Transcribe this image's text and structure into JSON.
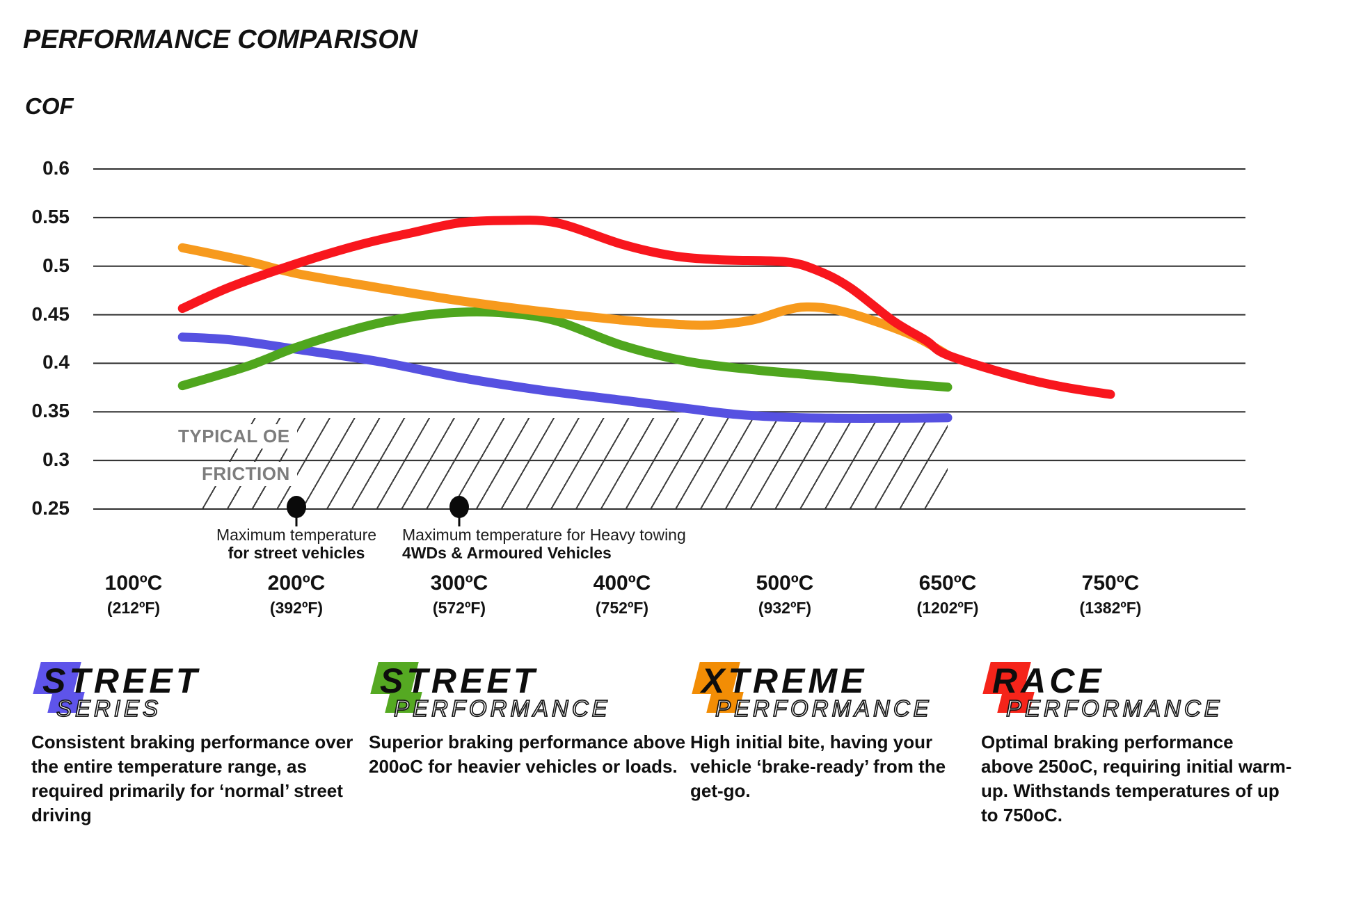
{
  "title": "PERFORMANCE COMPARISON",
  "y_axis_label": "COF",
  "y_ticks": [
    "0.6",
    "0.55",
    "0.5",
    "0.45",
    "0.4",
    "0.35",
    "0.3",
    "0.25"
  ],
  "x_ticks": [
    {
      "c": "100ºC",
      "f": "(212ºF)"
    },
    {
      "c": "200ºC",
      "f": "(392ºF)"
    },
    {
      "c": "300ºC",
      "f": "(572ºF)"
    },
    {
      "c": "400ºC",
      "f": "(752ºF)"
    },
    {
      "c": "500ºC",
      "f": "(932ºF)"
    },
    {
      "c": "650ºC",
      "f": "(1202ºF)"
    },
    {
      "c": "750ºC",
      "f": "(1382ºF)"
    }
  ],
  "oe_region": {
    "label_line1": "TYPICAL OE",
    "label_line2": "FRICTION"
  },
  "annotations": [
    {
      "temp": 200,
      "line1": "Maximum temperature",
      "line2": "for street vehicles"
    },
    {
      "temp": 300,
      "line1": "Maximum temperature for Heavy towing",
      "line2": "4WDs & Armoured Vehicles"
    }
  ],
  "legends": [
    {
      "word1": "STREET",
      "word2": "SERIES",
      "color": "#5e54ea",
      "description_lines": [
        "Consistent braking performance over",
        "the entire temperature range, as",
        "required primarily for ‘normal’ street",
        "driving"
      ]
    },
    {
      "word1": "STREET",
      "word2": "PERFORMANCE",
      "color": "#55a922",
      "description_lines": [
        "Superior braking performance above",
        "200oC for heavier vehicles or loads."
      ]
    },
    {
      "word1": "XTREME",
      "word2": "PERFORMANCE",
      "color": "#f28d05",
      "description_lines": [
        "High initial bite, having your",
        "vehicle ‘brake-ready’ from the",
        "get-go."
      ]
    },
    {
      "word1": "RACE",
      "word2": "PERFORMANCE",
      "color": "#f5241a",
      "description_lines": [
        "Optimal braking performance",
        "above 250oC, requiring initial warm-",
        "up. Withstands temperatures of up",
        "to 750oC."
      ]
    }
  ],
  "chart_data": {
    "type": "line",
    "title": "PERFORMANCE COMPARISON",
    "ylabel": "COF",
    "ylim": [
      0.25,
      0.6
    ],
    "grid": "horizontal",
    "x_scale": "uniform-tick-spacing",
    "x_tick_temps_c": [
      100,
      200,
      300,
      400,
      500,
      650,
      750
    ],
    "x_tick_temps_f": [
      212,
      392,
      572,
      752,
      932,
      1202,
      1382
    ],
    "oe_friction_band": {
      "label": "TYPICAL OE FRICTION",
      "cof_top": 0.345,
      "cof_bottom": 0.25,
      "temp_start": 130,
      "temp_end": 650
    },
    "markers": [
      {
        "temp": 200,
        "cof": 0.25,
        "label": "Maximum temperature for street vehicles"
      },
      {
        "temp": 300,
        "cof": 0.25,
        "label": "Maximum temperature for Heavy towing 4WDs & Armoured Vehicles"
      }
    ],
    "series": [
      {
        "name": "Street Series",
        "color": "#5651e1",
        "points": [
          [
            130,
            0.427
          ],
          [
            160,
            0.424
          ],
          [
            200,
            0.4145
          ],
          [
            250,
            0.402
          ],
          [
            300,
            0.3855
          ],
          [
            350,
            0.3725
          ],
          [
            400,
            0.362
          ],
          [
            440,
            0.3535
          ],
          [
            470,
            0.3475
          ],
          [
            500,
            0.3445
          ],
          [
            550,
            0.3435
          ],
          [
            600,
            0.3435
          ],
          [
            650,
            0.344
          ]
        ]
      },
      {
        "name": "Street Performance",
        "color": "#4fa61e",
        "points": [
          [
            130,
            0.377
          ],
          [
            170,
            0.397
          ],
          [
            200,
            0.4165
          ],
          [
            240,
            0.437
          ],
          [
            270,
            0.4475
          ],
          [
            300,
            0.4525
          ],
          [
            330,
            0.4515
          ],
          [
            360,
            0.4435
          ],
          [
            400,
            0.4185
          ],
          [
            440,
            0.402
          ],
          [
            480,
            0.3935
          ],
          [
            520,
            0.3885
          ],
          [
            570,
            0.3835
          ],
          [
            610,
            0.379
          ],
          [
            650,
            0.3755
          ]
        ]
      },
      {
        "name": "Xtreme Performance",
        "color": "#f79a1d",
        "points": [
          [
            130,
            0.519
          ],
          [
            170,
            0.505
          ],
          [
            200,
            0.4925
          ],
          [
            250,
            0.478
          ],
          [
            300,
            0.4645
          ],
          [
            350,
            0.4535
          ],
          [
            400,
            0.4445
          ],
          [
            430,
            0.4405
          ],
          [
            455,
            0.4395
          ],
          [
            480,
            0.4445
          ],
          [
            500,
            0.4545
          ],
          [
            520,
            0.458
          ],
          [
            545,
            0.4555
          ],
          [
            580,
            0.4445
          ],
          [
            620,
            0.4275
          ],
          [
            650,
            0.4085
          ]
        ]
      },
      {
        "name": "Race Performance",
        "color": "#f8161d",
        "points": [
          [
            130,
            0.4565
          ],
          [
            160,
            0.479
          ],
          [
            200,
            0.5025
          ],
          [
            240,
            0.5225
          ],
          [
            270,
            0.534
          ],
          [
            300,
            0.5445
          ],
          [
            330,
            0.547
          ],
          [
            360,
            0.5445
          ],
          [
            400,
            0.5225
          ],
          [
            430,
            0.511
          ],
          [
            460,
            0.5065
          ],
          [
            500,
            0.5045
          ],
          [
            530,
            0.4955
          ],
          [
            560,
            0.478
          ],
          [
            600,
            0.4435
          ],
          [
            630,
            0.4235
          ],
          [
            650,
            0.4085
          ],
          [
            690,
            0.3875
          ],
          [
            720,
            0.376
          ],
          [
            750,
            0.368
          ]
        ]
      }
    ]
  }
}
